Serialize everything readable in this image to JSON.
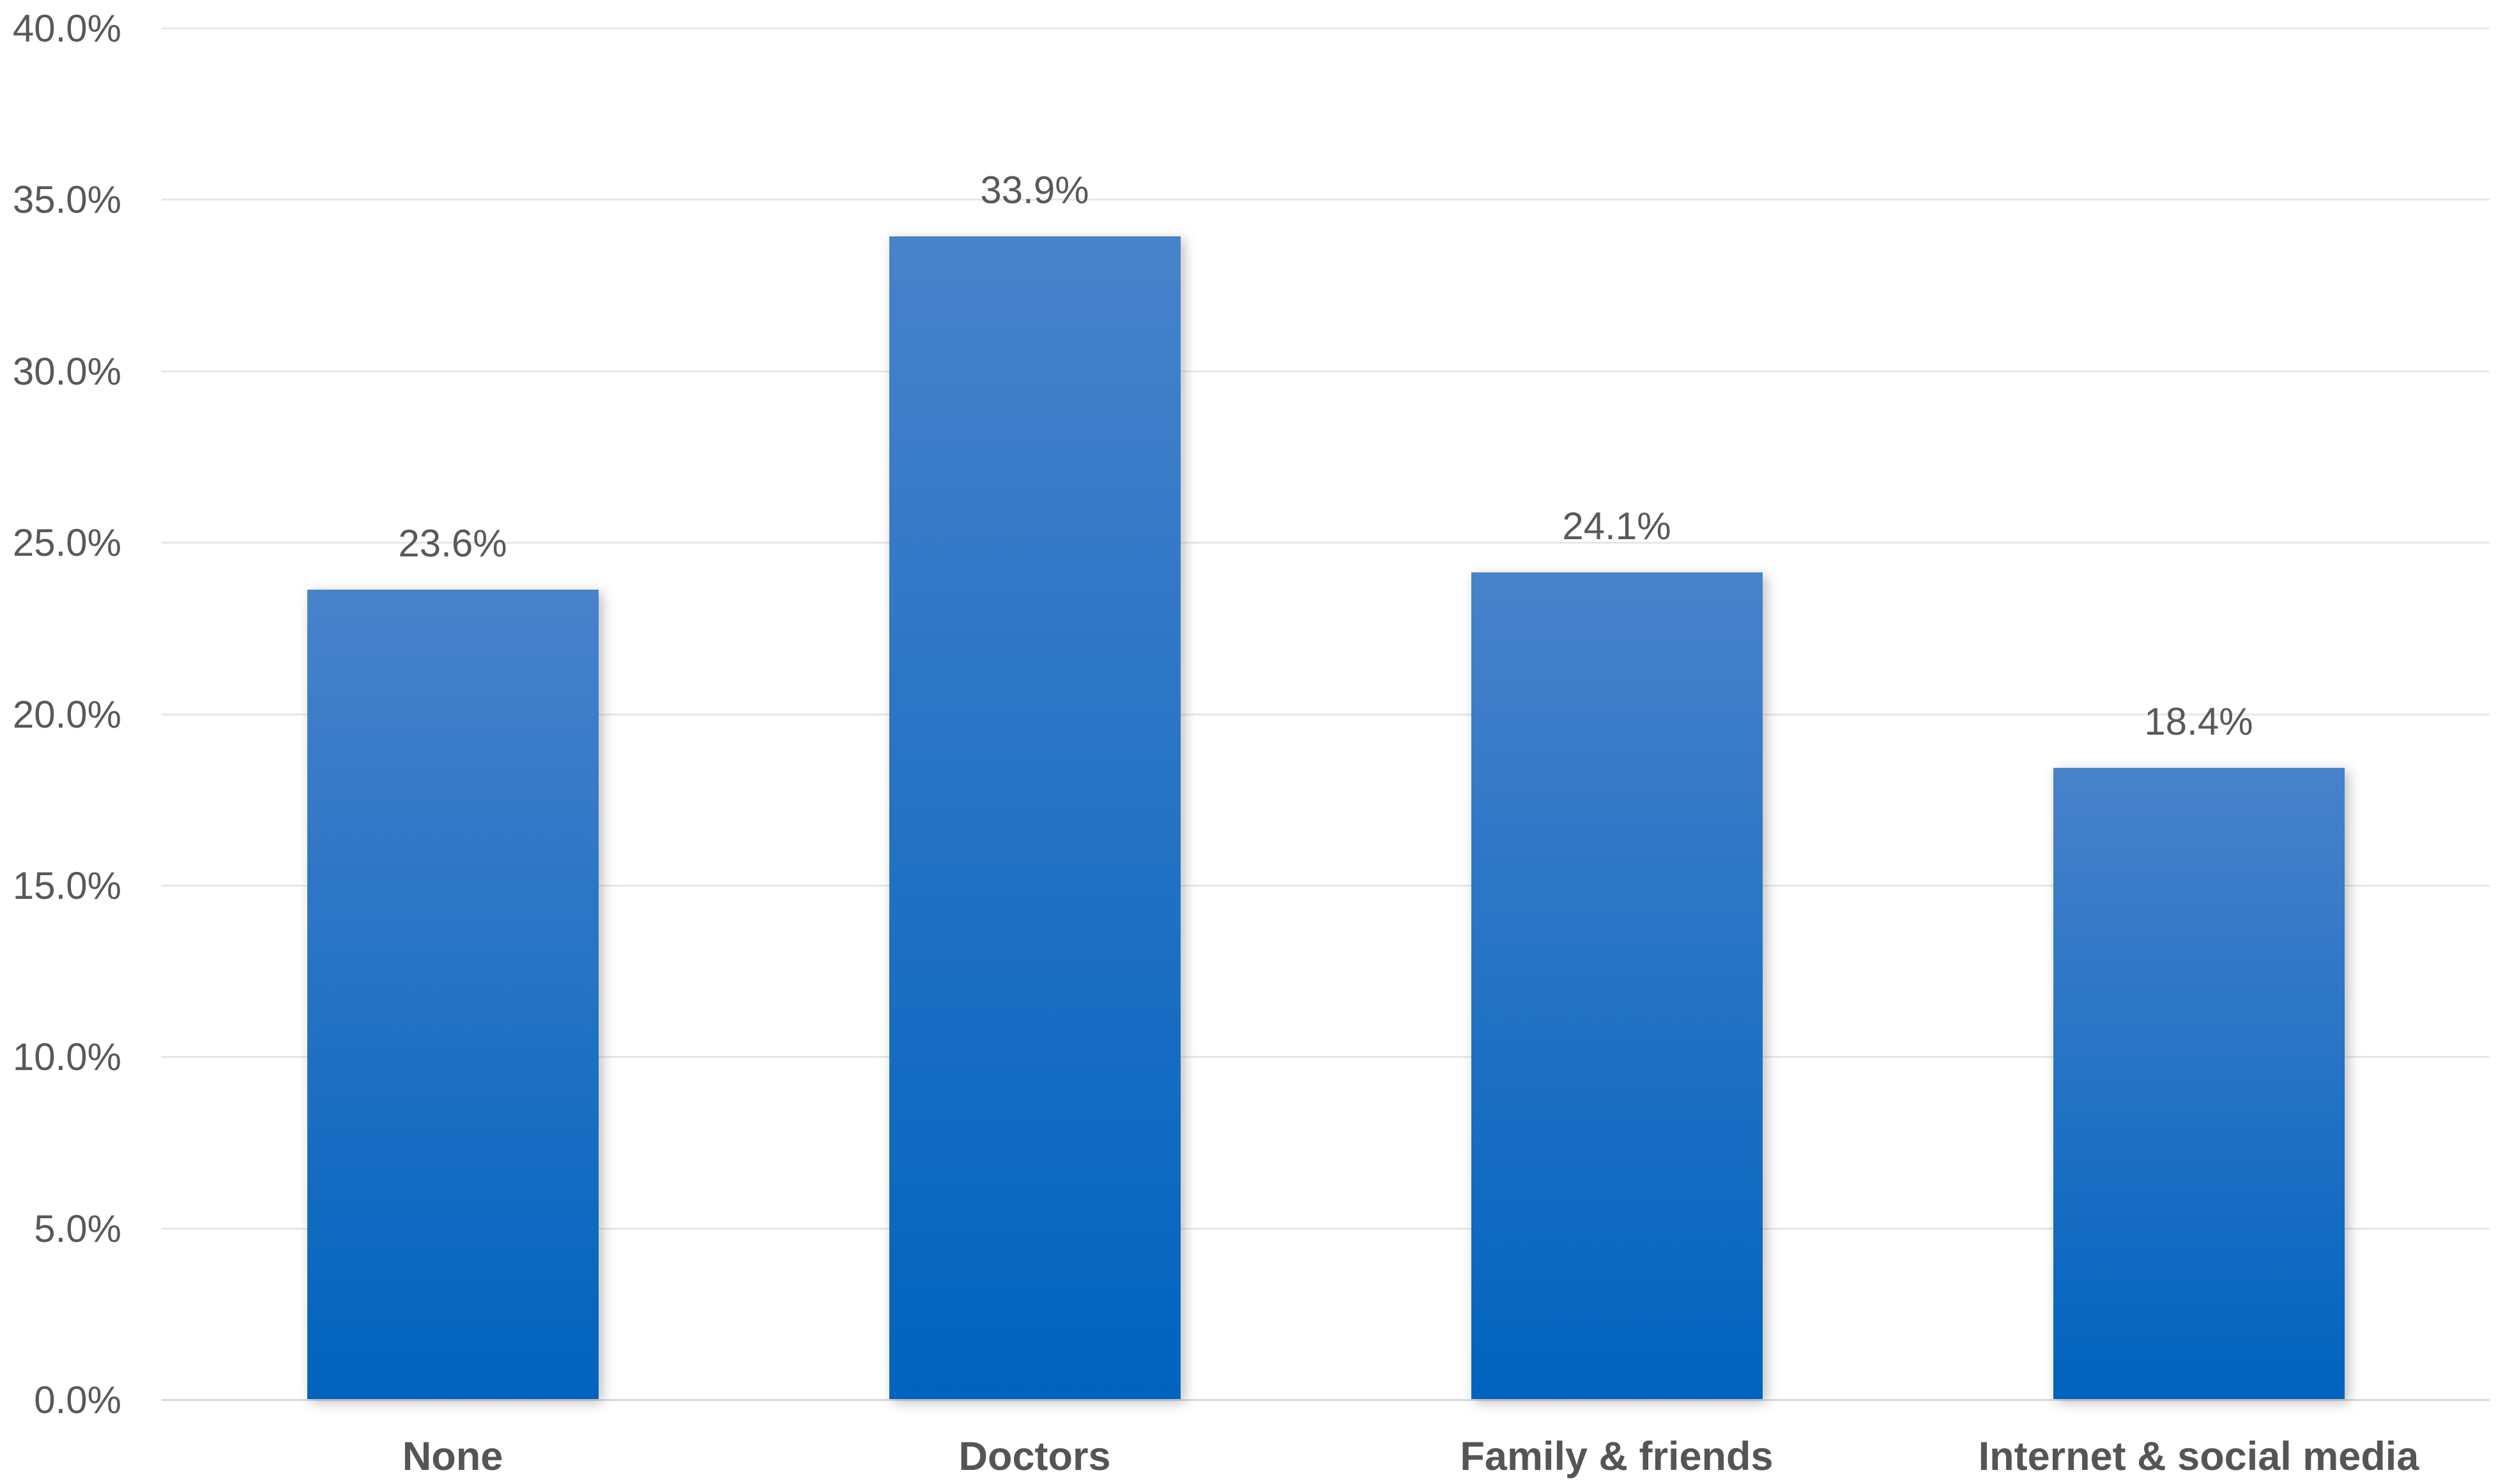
{
  "chart_data": {
    "type": "bar",
    "title": "",
    "xlabel": "",
    "ylabel": "",
    "categories": [
      "None",
      "Doctors",
      "Family & friends",
      "Internet & social media"
    ],
    "values": [
      23.6,
      33.9,
      24.1,
      18.4
    ],
    "data_labels": [
      "23.6%",
      "33.9%",
      "24.1%",
      "18.4%"
    ],
    "ylim": [
      0,
      40
    ],
    "ytick_step": 5,
    "ytick_labels": [
      "0.0%",
      "5.0%",
      "10.0%",
      "15.0%",
      "20.0%",
      "25.0%",
      "30.0%",
      "35.0%",
      "40.0%"
    ],
    "grid": true,
    "legend": false,
    "bar_gap_ratio": 0.5
  },
  "colors": {
    "background": "#ffffff",
    "bar_gradient_top": "#4882cb",
    "bar_gradient_bottom": "#0063be",
    "gridline": "#e7e7e7",
    "axis_line": "#d9d9d9",
    "tick_label": "#595959",
    "data_label": "#595959",
    "category_label": "#555555"
  }
}
